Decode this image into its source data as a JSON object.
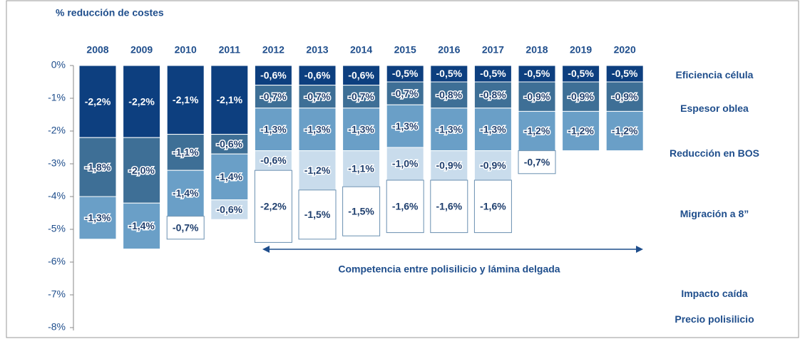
{
  "chart_data": {
    "type": "stacked_bar",
    "title": "% reducción de costes",
    "categories": [
      "2008",
      "2009",
      "2010",
      "2011",
      "2012",
      "2013",
      "2014",
      "2015",
      "2016",
      "2017",
      "2018",
      "2019",
      "2020"
    ],
    "ylim": [
      -8,
      0
    ],
    "yticks": [
      {
        "value": 0,
        "label": "0%"
      },
      {
        "value": -1,
        "label": "-1%"
      },
      {
        "value": -2,
        "label": "-2%"
      },
      {
        "value": -3,
        "label": "-3%"
      },
      {
        "value": -4,
        "label": "-4%"
      },
      {
        "value": -5,
        "label": "-5%"
      },
      {
        "value": -6,
        "label": "-6%"
      },
      {
        "value": -7,
        "label": "-7%"
      },
      {
        "value": -8,
        "label": "-8%"
      }
    ],
    "series": [
      {
        "name": "Eficiencia célula",
        "color": "#0d3f7f",
        "values": [
          -2.2,
          -2.2,
          -2.1,
          -2.1,
          -0.6,
          -0.6,
          -0.6,
          -0.5,
          -0.5,
          -0.5,
          -0.5,
          -0.5,
          -0.5
        ],
        "value_labels": [
          "-2,2%",
          "-2,2%",
          "-2,1%",
          "-2,1%",
          "-0,6%",
          "-0,6%",
          "-0,6%",
          "-0,5%",
          "-0,5%",
          "-0,5%",
          "-0,5%",
          "-0,5%",
          "-0,5%"
        ]
      },
      {
        "name": "Espesor oblea",
        "color": "#3e6f96",
        "values": [
          -1.8,
          -2.0,
          -1.1,
          -0.6,
          -0.7,
          -0.7,
          -0.7,
          -0.7,
          -0.8,
          -0.8,
          -0.9,
          -0.9,
          -0.9
        ],
        "value_labels": [
          "-1,8%",
          "-2,0%",
          "-1,1%",
          "-0,6%",
          "-0,7%",
          "-0,7%",
          "-0,7%",
          "-0,7%",
          "-0,8%",
          "-0,8%",
          "-0,9%",
          "-0,9%",
          "-0,9%"
        ]
      },
      {
        "name": "Reducción en BOS",
        "color": "#6a9fc7",
        "values": [
          -1.3,
          -1.4,
          -1.4,
          -1.4,
          -1.3,
          -1.3,
          -1.3,
          -1.3,
          -1.3,
          -1.3,
          -1.2,
          -1.2,
          -1.2
        ],
        "value_labels": [
          "-1,3%",
          "-1,4%",
          "-1,4%",
          "-1,4%",
          "-1,3%",
          "-1,3%",
          "-1,3%",
          "-1,3%",
          "-1,3%",
          "-1,3%",
          "-1,2%",
          "-1,2%",
          "-1,2%"
        ]
      },
      {
        "name": "Migración a 8”",
        "color": "#c9dcec",
        "values": [
          null,
          null,
          null,
          -0.6,
          -0.6,
          -1.2,
          -1.1,
          -1.0,
          -0.9,
          -0.9,
          null,
          null,
          null
        ],
        "value_labels": [
          null,
          null,
          null,
          "-0,6%",
          "-0,6%",
          "-1,2%",
          "-1,1%",
          "-1,0%",
          "-0,9%",
          "-0,9%",
          null,
          null,
          null
        ]
      },
      {
        "name": "Impacto caída\nPrecio polisilicio",
        "color": "#ffffff",
        "values": [
          null,
          null,
          -0.7,
          null,
          -2.2,
          -1.5,
          -1.5,
          -1.6,
          -1.6,
          -1.6,
          -0.7,
          null,
          null
        ],
        "value_labels": [
          null,
          null,
          "-0,7%",
          null,
          "-2,2%",
          "-1,5%",
          "-1,5%",
          "-1,6%",
          "-1,6%",
          "-1,6%",
          "-0,7%",
          null,
          null
        ]
      }
    ],
    "annotation": "Competencia entre polisilicio y lámina delgada"
  }
}
